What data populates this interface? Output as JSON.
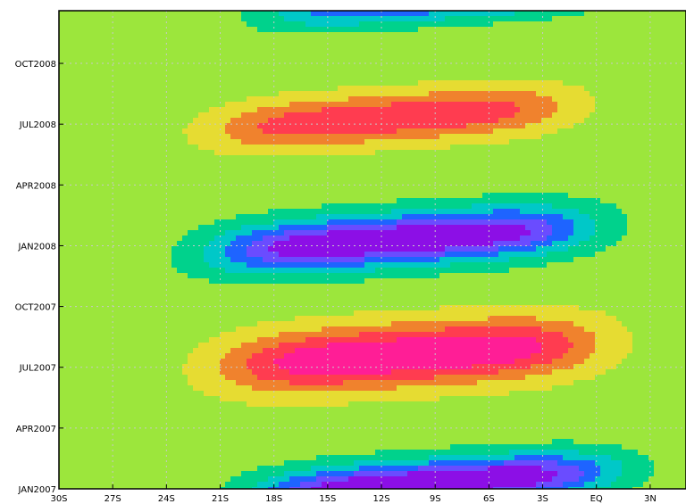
{
  "chart_data": {
    "type": "heatmap",
    "subtype": "filled-contour (latitude–time Hovmöller)",
    "title": "",
    "xlabel": "",
    "ylabel": "",
    "x_ticks": [
      "30S",
      "27S",
      "24S",
      "21S",
      "18S",
      "15S",
      "12S",
      "9S",
      "6S",
      "3S",
      "EQ",
      "3N"
    ],
    "x_tick_values": [
      -30,
      -27,
      -24,
      -21,
      -18,
      -15,
      -12,
      -9,
      -6,
      -3,
      0,
      3
    ],
    "xlim": [
      -30,
      5
    ],
    "y_ticks": [
      "JAN2007",
      "APR2007",
      "JUL2007",
      "OCT2007",
      "JAN2008",
      "APR2008",
      "JUL2008",
      "OCT2008"
    ],
    "y_tick_values": [
      0,
      3,
      6,
      9,
      12,
      15,
      18,
      21
    ],
    "ylim": [
      0,
      23.6
    ],
    "y_units": "months since JAN2007",
    "grid": true,
    "colorbar": false,
    "background_level_color": "#9ce63c",
    "level_colors": [
      "#8c0fe6",
      "#6a4cff",
      "#1e64ff",
      "#00c8c8",
      "#00d28c",
      "#9ce63c",
      "#e6dc32",
      "#f0822d",
      "#ff3c50",
      "#ff1e96"
    ],
    "features": [
      {
        "kind": "warm",
        "center_lat": -10.5,
        "center_month": 6.6,
        "width_lat": 20,
        "duration_months": 3.3,
        "tilt_months_per_deg": 0.055,
        "peak_level": 9
      },
      {
        "kind": "cold",
        "center_lat": -11,
        "center_month": 12.3,
        "width_lat": 20,
        "duration_months": 2.7,
        "tilt_months_per_deg": 0.06,
        "peak_level": 0
      },
      {
        "kind": "warm",
        "center_lat": -11.5,
        "center_month": 18.3,
        "width_lat": 19,
        "duration_months": 2.6,
        "tilt_months_per_deg": 0.06,
        "peak_level": 8
      },
      {
        "kind": "cold",
        "center_lat": -9,
        "center_month": 0.3,
        "width_lat": 19,
        "duration_months": 2.4,
        "tilt_months_per_deg": 0.06,
        "peak_level": 0
      },
      {
        "kind": "cold",
        "center_lat": -9,
        "center_month": 24.0,
        "width_lat": 18,
        "duration_months": 2.0,
        "tilt_months_per_deg": 0.06,
        "peak_level": 2
      }
    ]
  }
}
